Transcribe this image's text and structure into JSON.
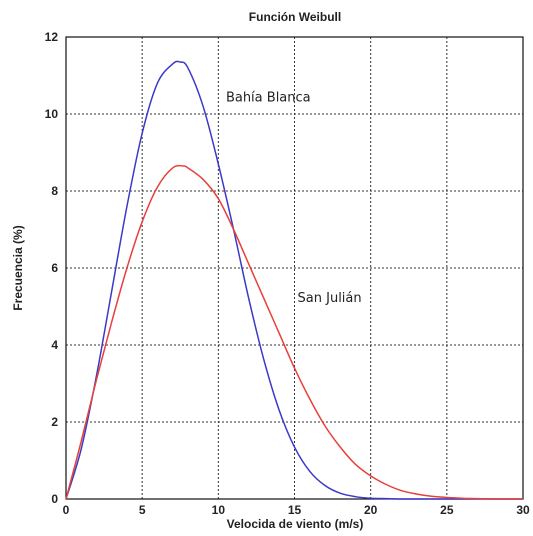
{
  "chart_data": {
    "type": "line",
    "title": "Función Weibull",
    "xlabel": "Velocida de viento (m/s)",
    "ylabel": "Frecuencia (%)",
    "xlim": [
      0,
      30
    ],
    "ylim": [
      0,
      12
    ],
    "xticks": [
      "0",
      "5",
      "10",
      "15",
      "20",
      "25",
      "30"
    ],
    "yticks": [
      "0",
      "2",
      "4",
      "6",
      "8",
      "10",
      "12"
    ],
    "grid": true,
    "series": [
      {
        "name": "Bahía Blanca",
        "color": "#3a3ac8",
        "x": [
          0,
          1,
          2,
          3,
          4,
          5,
          6,
          7,
          7.5,
          8,
          9,
          10,
          11,
          12,
          13,
          14,
          15,
          16,
          17,
          18,
          19,
          20,
          21,
          22,
          23,
          25,
          30
        ],
        "y": [
          0,
          1.3,
          3.2,
          5.4,
          7.6,
          9.5,
          10.8,
          11.3,
          11.35,
          11.2,
          10.2,
          8.7,
          7.0,
          5.2,
          3.6,
          2.3,
          1.35,
          0.72,
          0.35,
          0.15,
          0.06,
          0.02,
          0.01,
          0,
          0,
          0,
          0
        ]
      },
      {
        "name": "San Julián",
        "color": "#e8403a",
        "x": [
          0,
          1,
          2,
          3,
          4,
          5,
          6,
          7,
          7.7,
          8,
          9,
          10,
          11,
          12,
          13,
          14,
          15,
          16,
          17,
          18,
          19,
          20,
          21,
          22,
          23,
          24,
          25,
          26,
          27,
          28,
          30
        ],
        "y": [
          0,
          1.5,
          3.1,
          4.6,
          6.0,
          7.2,
          8.1,
          8.6,
          8.65,
          8.6,
          8.3,
          7.8,
          7.0,
          6.1,
          5.2,
          4.3,
          3.4,
          2.6,
          1.9,
          1.35,
          0.9,
          0.6,
          0.38,
          0.22,
          0.13,
          0.07,
          0.04,
          0.02,
          0.01,
          0,
          0
        ]
      }
    ],
    "annotations": [
      {
        "text": "Bahía Blanca",
        "x": 10.5,
        "y": 10.45
      },
      {
        "text": "San Julián",
        "x": 15.2,
        "y": 5.25
      }
    ]
  }
}
